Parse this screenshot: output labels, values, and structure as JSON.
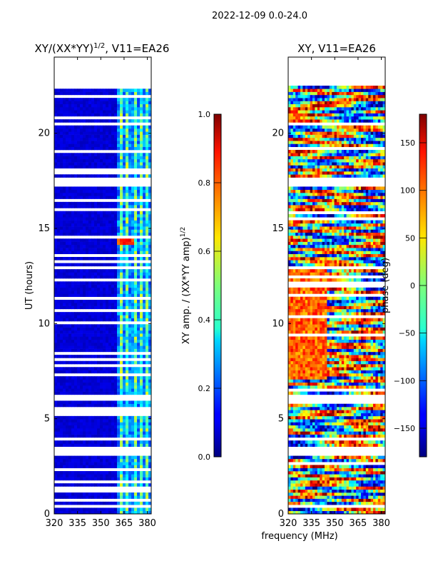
{
  "figure_title": "2022-12-09 0.0-24.0",
  "shared_xlabel": "frequency (MHz)",
  "chart_data": [
    {
      "type": "heatmap",
      "title": "XY/(XX*YY)",
      "title_exponent": "1/2",
      "title_suffix": ", V11=EA26",
      "ylabel": "UT (hours)",
      "xlim": [
        320,
        382.5
      ],
      "ylim": [
        0,
        24
      ],
      "x_ticks": [
        320,
        335,
        350,
        365,
        380
      ],
      "y_ticks": [
        0,
        5,
        10,
        15,
        20
      ],
      "colorbar": {
        "label": "XY amp. / (XX*YY amp)",
        "label_exponent": "1/2",
        "range": [
          0.0,
          1.0
        ],
        "ticks": [
          "0.0",
          "0.2",
          "0.4",
          "0.6",
          "0.8",
          "1.0"
        ],
        "tick_values": [
          0.0,
          0.2,
          0.4,
          0.6,
          0.8,
          1.0
        ],
        "colormap": "jet"
      },
      "data_end_hour": 22.5,
      "flagged_hour_bands": [
        [
          3.0,
          3.6
        ],
        [
          14.4,
          14.6
        ],
        [
          12.85,
          13.05
        ],
        [
          17.2,
          17.6
        ],
        [
          20.4,
          20.6
        ],
        [
          19.0,
          19.15
        ],
        [
          9.95,
          10.1
        ],
        [
          6.1,
          6.25
        ]
      ],
      "bright_channel_ranges_mhz": [
        [
          362.5,
          364.5
        ],
        [
          366.5,
          368.5
        ],
        [
          371.5,
          373.5
        ],
        [
          375.5,
          377.5
        ],
        [
          378.5,
          380.5
        ]
      ],
      "hot_spots": [
        {
          "hour": 14.3,
          "mhz_from": 361,
          "mhz_to": 371,
          "value": 0.9
        }
      ]
    },
    {
      "type": "heatmap",
      "title": "XY, V11=EA26",
      "ylabel": "",
      "xlim": [
        320,
        382.5
      ],
      "ylim": [
        0,
        24
      ],
      "x_ticks": [
        320,
        335,
        350,
        365,
        380
      ],
      "y_ticks": [
        0,
        5,
        10,
        15,
        20
      ],
      "colorbar": {
        "label": "phase (deg)",
        "range": [
          -180,
          180
        ],
        "ticks": [
          "−150",
          "−100",
          "−50",
          "0",
          "50",
          "100",
          "150"
        ],
        "tick_values": [
          -150,
          -100,
          -50,
          0,
          50,
          100,
          150
        ],
        "colormap": "jet"
      },
      "data_end_hour": 22.5,
      "flagged_hour_bands": [
        [
          3.0,
          3.6
        ],
        [
          12.85,
          13.05
        ],
        [
          17.2,
          17.6
        ],
        [
          20.4,
          20.6
        ]
      ]
    }
  ]
}
